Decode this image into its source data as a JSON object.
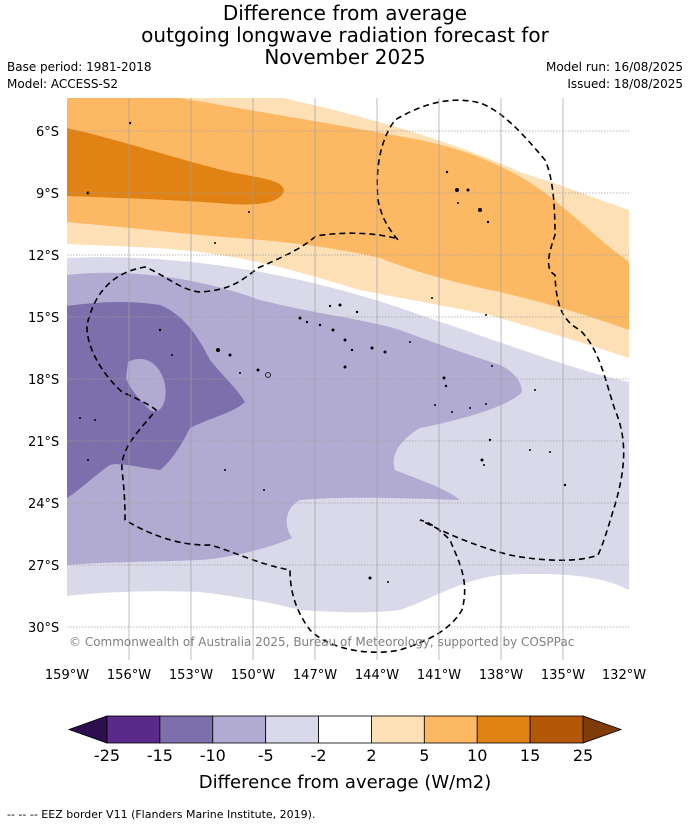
{
  "title": {
    "line1": "Difference from average",
    "line2": "outgoing longwave radiation forecast for",
    "line3": "November 2025"
  },
  "meta": {
    "base_period": "Base period: 1981-2018",
    "model": "Model: ACCESS-S2",
    "model_run": "Model run: 16/08/2025",
    "issued": "Issued: 18/08/2025"
  },
  "map": {
    "lon_ticks": [
      "159°W",
      "156°W",
      "153°W",
      "150°W",
      "147°W",
      "144°W",
      "141°W",
      "138°W",
      "135°W",
      "132°W"
    ],
    "lat_ticks": [
      "6°S",
      "9°S",
      "12°S",
      "15°S",
      "18°S",
      "21°S",
      "24°S",
      "27°S",
      "30°S"
    ],
    "copyright": "© Commonwealth of Australia 2025, Bureau of Meteorology, supported by COSPPac"
  },
  "colorbar": {
    "labels": [
      "-25",
      "-15",
      "-10",
      "-5",
      "-2",
      "2",
      "5",
      "10",
      "15",
      "25"
    ],
    "colors": [
      "#5a2a8a",
      "#7d6fab",
      "#b1abd2",
      "#d9d9ea",
      "#ffffff",
      "#fee0b6",
      "#fdb863",
      "#e08214",
      "#b35806"
    ],
    "under_color": "#2d0f50",
    "over_color": "#7f3b08",
    "label": "Difference from average (W/m2)"
  },
  "footer": "--  --  -- EEZ border V11 (Flanders Marine Institute, 2019)."
}
